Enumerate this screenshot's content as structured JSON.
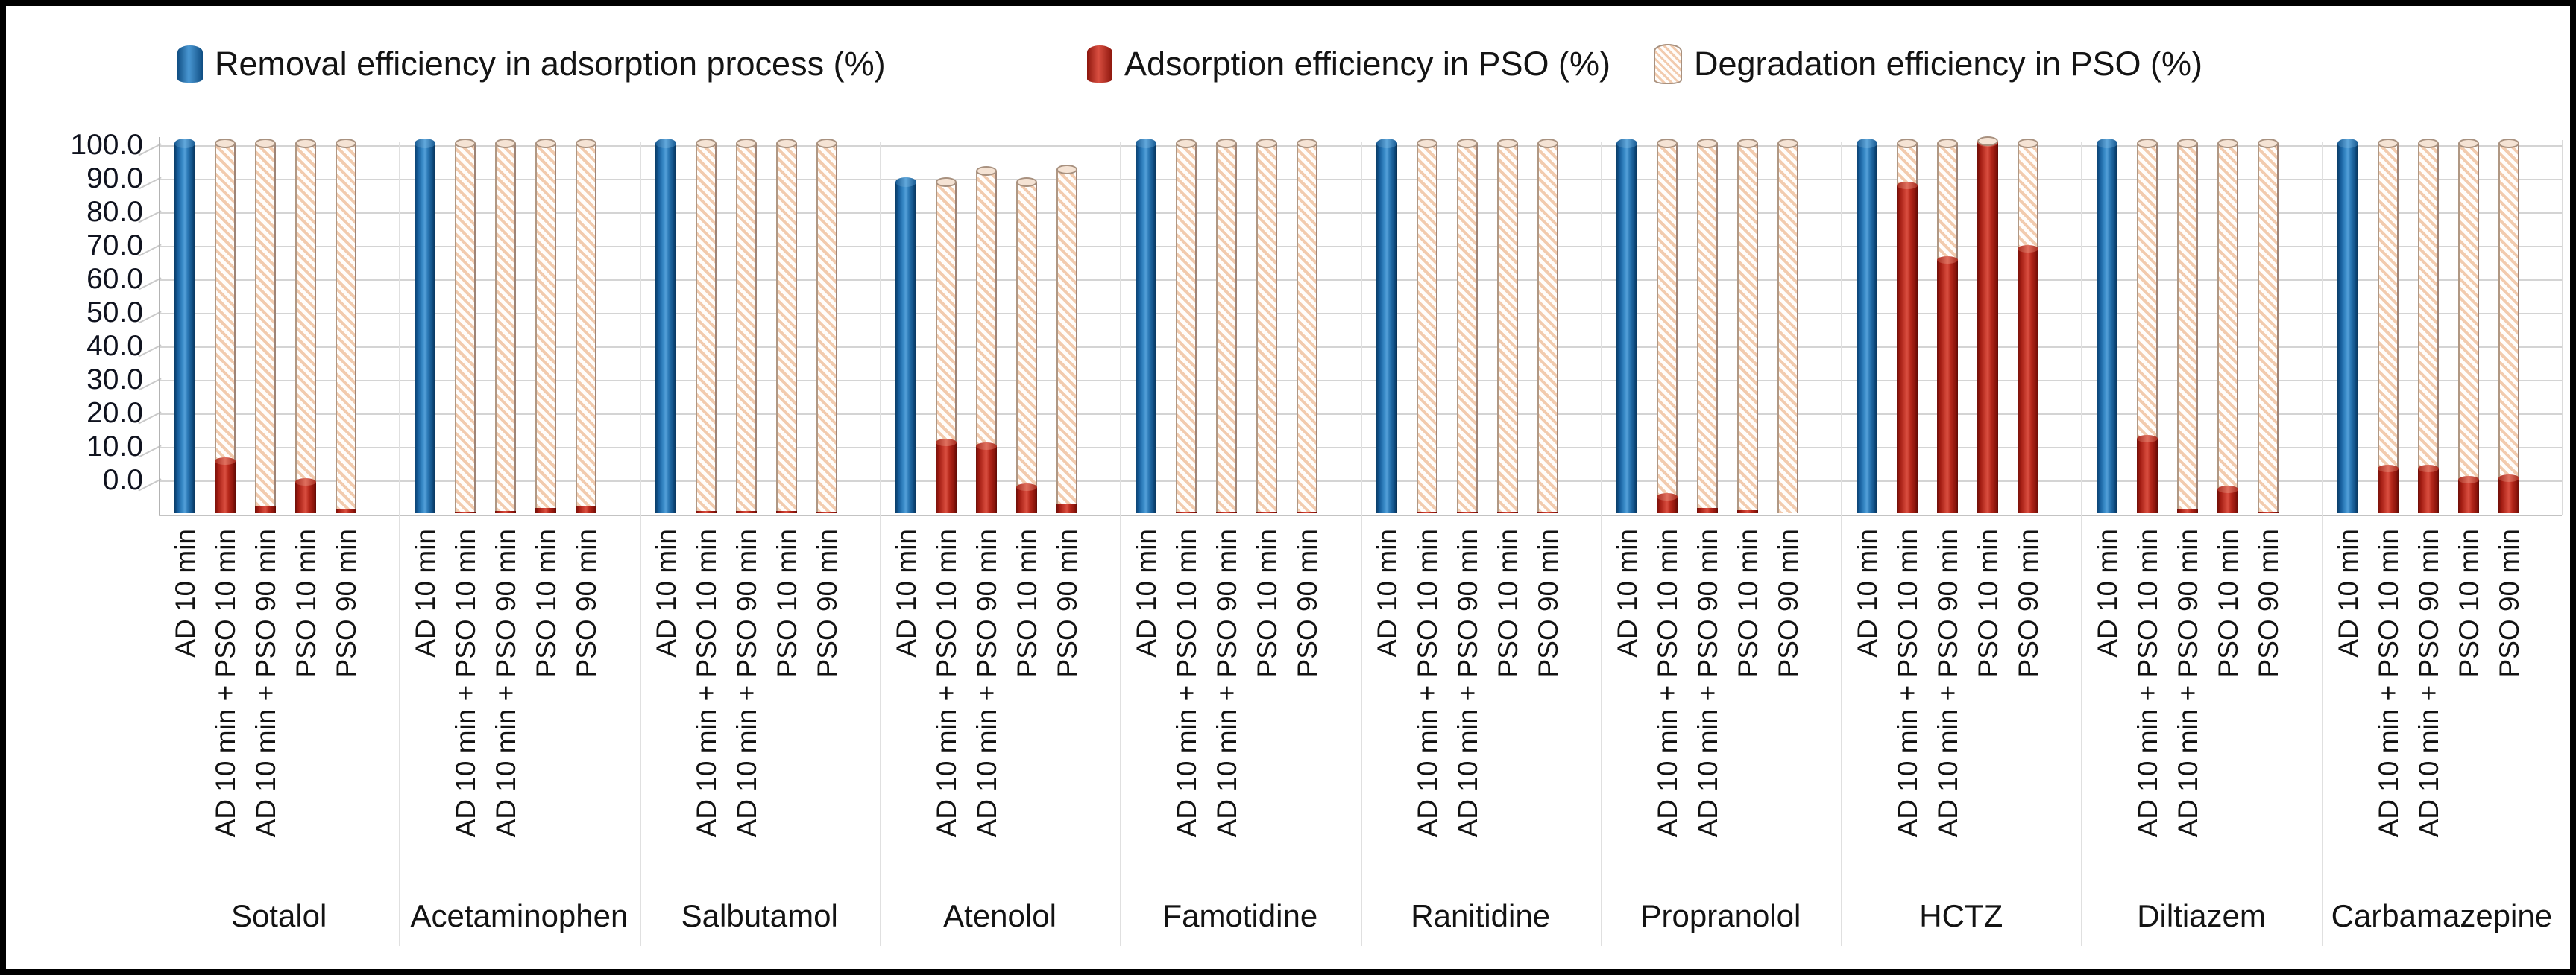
{
  "legend": [
    {
      "label": "Removal efficiency in adsorption process (%)",
      "color": "#1e6cb0",
      "style": "solid-blue"
    },
    {
      "label": "Adsorption efficiency in PSO (%)",
      "color": "#c0271d",
      "style": "solid-red"
    },
    {
      "label": "Degradation efficiency in PSO (%)",
      "color": "#f7e5d8",
      "style": "hatched-cream"
    }
  ],
  "chart_data": {
    "type": "bar",
    "subtype": "stacked-3d-cylinder",
    "title": "",
    "xlabel": "",
    "ylabel": "",
    "ylim": [
      0,
      100
    ],
    "ytick_step": 10,
    "ytick_labels": [
      "0.0",
      "10.0",
      "20.0",
      "30.0",
      "40.0",
      "50.0",
      "60.0",
      "70.0",
      "80.0",
      "90.0",
      "100.0"
    ],
    "grid": true,
    "legend_position": "top",
    "categories": [
      "Sotalol",
      "Acetaminophen",
      "Salbutamol",
      "Atenolol",
      "Famotidine",
      "Ranitidine",
      "Propranolol",
      "HCTZ",
      "Diltiazem",
      "Carbamazepine"
    ],
    "conditions": [
      "AD 10 min",
      "AD 10 min + PSO 10 min",
      "AD 10 min + PSO 90 min",
      "PSO 10 min",
      "PSO 90 min"
    ],
    "series": [
      {
        "name": "Removal efficiency in adsorption process (%)",
        "applies_to_condition": "AD 10 min",
        "color": "#1e6cb0",
        "values": [
          99.5,
          99.5,
          99.5,
          89,
          99.5,
          99.5,
          99.5,
          99.5,
          99.5,
          99.5
        ]
      },
      {
        "name": "Adsorption efficiency in PSO (%)",
        "applies_to_conditions": [
          "AD 10 min + PSO 10 min",
          "AD 10 min + PSO 90 min",
          "PSO 10 min",
          "PSO 90 min"
        ],
        "color": "#c0271d",
        "values": [
          [
            14,
            2,
            8.5,
            1
          ],
          [
            0.4,
            0.6,
            1.5,
            2
          ],
          [
            0.7,
            0.7,
            0.6,
            0.2
          ],
          [
            19,
            18,
            7,
            2.5
          ],
          [
            0.3,
            0.3,
            0.3,
            0.3
          ],
          [
            0.2,
            0.2,
            0.2,
            0.2
          ],
          [
            4.5,
            1.5,
            0.8,
            0.1
          ],
          [
            88,
            68,
            99.5,
            71
          ],
          [
            20,
            1.3,
            6.5,
            0.4
          ],
          [
            12,
            12,
            9,
            9.5
          ]
        ]
      },
      {
        "name": "Degradation efficiency in PSO (%)",
        "applies_to_conditions": [
          "AD 10 min + PSO 10 min",
          "AD 10 min + PSO 90 min",
          "PSO 10 min",
          "PSO 90 min"
        ],
        "color": "#f7e5d8",
        "values": [
          [
            85.5,
            97.5,
            91,
            98.5
          ],
          [
            99.1,
            98.9,
            98,
            97.5
          ],
          [
            98.8,
            98.8,
            98.9,
            99.3
          ],
          [
            70,
            74,
            82,
            90
          ],
          [
            99.2,
            99.2,
            99.2,
            99.2
          ],
          [
            99.3,
            99.3,
            99.3,
            99.3
          ],
          [
            95,
            98,
            98.7,
            99.4
          ],
          [
            11.5,
            31.5,
            0.5,
            28.5
          ],
          [
            79.5,
            98.2,
            93,
            99.1
          ],
          [
            87.5,
            87.5,
            90.5,
            90
          ]
        ]
      }
    ]
  }
}
